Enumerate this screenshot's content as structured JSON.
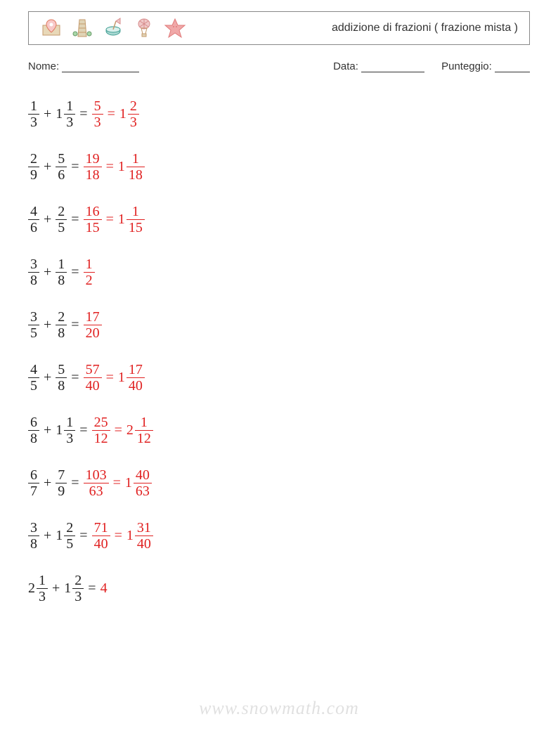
{
  "header": {
    "title": "addizione di frazioni ( frazione mista )",
    "title_fontsize": 16,
    "border_color": "#888888",
    "icons": [
      {
        "name": "map-pin-icon",
        "stroke": "#e07a5f",
        "fill": "#e8d8b8"
      },
      {
        "name": "tower-icon",
        "stroke": "#c49a6c",
        "fill": "#e0d4b6"
      },
      {
        "name": "drink-icon",
        "stroke": "#3a9a8f",
        "fill": "#a8d8d2"
      },
      {
        "name": "balloon-icon",
        "stroke": "#d68b8b",
        "fill": "#f0c8c8"
      },
      {
        "name": "starfish-icon",
        "stroke": "#e07a7a",
        "fill": "#f0a8a8"
      }
    ]
  },
  "meta": {
    "name_label": "Nome:",
    "date_label": "Data:",
    "score_label": "Punteggio:"
  },
  "colors": {
    "text": "#333333",
    "problem": "#222222",
    "answer": "#e02020",
    "background": "#ffffff",
    "watermark": "rgba(0,0,0,0.12)"
  },
  "typography": {
    "equation_font": "Times New Roman",
    "equation_fontsize": 20,
    "meta_fontsize": 15
  },
  "problems": [
    {
      "lhs": [
        {
          "type": "frac",
          "num": "1",
          "den": "3"
        },
        {
          "type": "op",
          "text": "+"
        },
        {
          "type": "mixed",
          "whole": "1",
          "num": "1",
          "den": "3"
        }
      ],
      "rhs": [
        {
          "type": "frac",
          "num": "5",
          "den": "3"
        },
        {
          "type": "op",
          "text": "="
        },
        {
          "type": "mixed",
          "whole": "1",
          "num": "2",
          "den": "3"
        }
      ]
    },
    {
      "lhs": [
        {
          "type": "frac",
          "num": "2",
          "den": "9"
        },
        {
          "type": "op",
          "text": "+"
        },
        {
          "type": "frac",
          "num": "5",
          "den": "6"
        }
      ],
      "rhs": [
        {
          "type": "frac",
          "num": "19",
          "den": "18"
        },
        {
          "type": "op",
          "text": "="
        },
        {
          "type": "mixed",
          "whole": "1",
          "num": "1",
          "den": "18"
        }
      ]
    },
    {
      "lhs": [
        {
          "type": "frac",
          "num": "4",
          "den": "6"
        },
        {
          "type": "op",
          "text": "+"
        },
        {
          "type": "frac",
          "num": "2",
          "den": "5"
        }
      ],
      "rhs": [
        {
          "type": "frac",
          "num": "16",
          "den": "15"
        },
        {
          "type": "op",
          "text": "="
        },
        {
          "type": "mixed",
          "whole": "1",
          "num": "1",
          "den": "15"
        }
      ]
    },
    {
      "lhs": [
        {
          "type": "frac",
          "num": "3",
          "den": "8"
        },
        {
          "type": "op",
          "text": "+"
        },
        {
          "type": "frac",
          "num": "1",
          "den": "8"
        }
      ],
      "rhs": [
        {
          "type": "frac",
          "num": "1",
          "den": "2"
        }
      ]
    },
    {
      "lhs": [
        {
          "type": "frac",
          "num": "3",
          "den": "5"
        },
        {
          "type": "op",
          "text": "+"
        },
        {
          "type": "frac",
          "num": "2",
          "den": "8"
        }
      ],
      "rhs": [
        {
          "type": "frac",
          "num": "17",
          "den": "20"
        }
      ]
    },
    {
      "lhs": [
        {
          "type": "frac",
          "num": "4",
          "den": "5"
        },
        {
          "type": "op",
          "text": "+"
        },
        {
          "type": "frac",
          "num": "5",
          "den": "8"
        }
      ],
      "rhs": [
        {
          "type": "frac",
          "num": "57",
          "den": "40"
        },
        {
          "type": "op",
          "text": "="
        },
        {
          "type": "mixed",
          "whole": "1",
          "num": "17",
          "den": "40"
        }
      ]
    },
    {
      "lhs": [
        {
          "type": "frac",
          "num": "6",
          "den": "8"
        },
        {
          "type": "op",
          "text": "+"
        },
        {
          "type": "mixed",
          "whole": "1",
          "num": "1",
          "den": "3"
        }
      ],
      "rhs": [
        {
          "type": "frac",
          "num": "25",
          "den": "12"
        },
        {
          "type": "op",
          "text": "="
        },
        {
          "type": "mixed",
          "whole": "2",
          "num": "1",
          "den": "12"
        }
      ]
    },
    {
      "lhs": [
        {
          "type": "frac",
          "num": "6",
          "den": "7"
        },
        {
          "type": "op",
          "text": "+"
        },
        {
          "type": "frac",
          "num": "7",
          "den": "9"
        }
      ],
      "rhs": [
        {
          "type": "frac",
          "num": "103",
          "den": "63"
        },
        {
          "type": "op",
          "text": "="
        },
        {
          "type": "mixed",
          "whole": "1",
          "num": "40",
          "den": "63"
        }
      ]
    },
    {
      "lhs": [
        {
          "type": "frac",
          "num": "3",
          "den": "8"
        },
        {
          "type": "op",
          "text": "+"
        },
        {
          "type": "mixed",
          "whole": "1",
          "num": "2",
          "den": "5"
        }
      ],
      "rhs": [
        {
          "type": "frac",
          "num": "71",
          "den": "40"
        },
        {
          "type": "op",
          "text": "="
        },
        {
          "type": "mixed",
          "whole": "1",
          "num": "31",
          "den": "40"
        }
      ]
    },
    {
      "lhs": [
        {
          "type": "mixed",
          "whole": "2",
          "num": "1",
          "den": "3"
        },
        {
          "type": "op",
          "text": "+"
        },
        {
          "type": "mixed",
          "whole": "1",
          "num": "2",
          "den": "3"
        }
      ],
      "rhs": [
        {
          "type": "whole",
          "text": "4"
        }
      ]
    }
  ],
  "watermark": "www.snowmath.com"
}
